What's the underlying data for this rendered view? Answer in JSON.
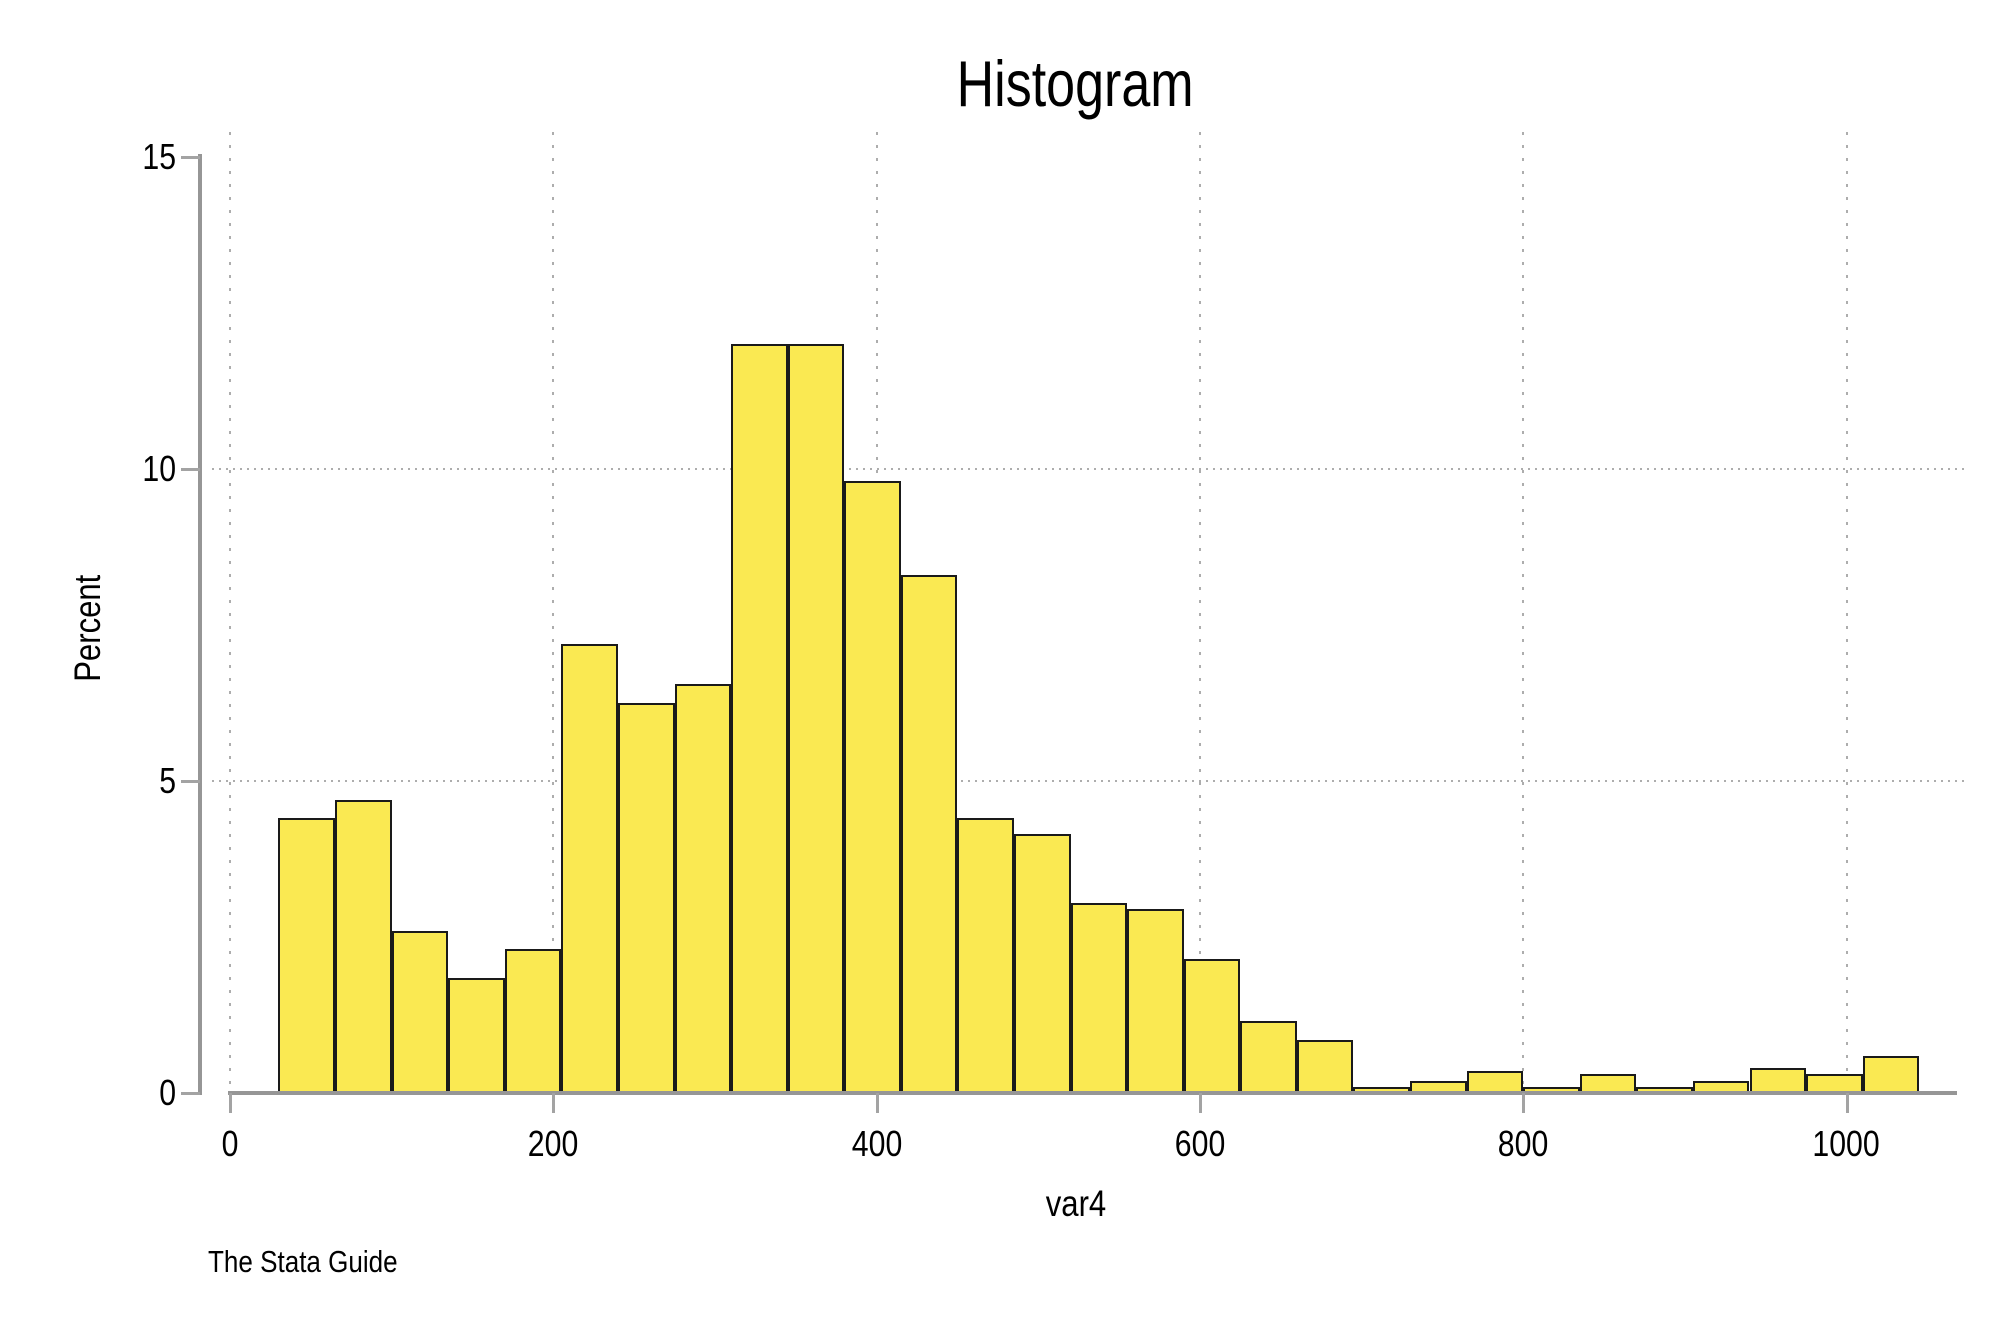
{
  "title": "Histogram",
  "caption": "The Stata Guide",
  "colors": {
    "bar_fill": "#FAE952",
    "bar_border": "#1A1A1A",
    "axis": "#969696",
    "tick": "#A3A3A3",
    "gridline": "#ADADAD",
    "text": "#000000",
    "background": "#FFFFFF"
  },
  "chart_data": {
    "type": "bar",
    "subtype": "histogram",
    "title": "Histogram",
    "xlabel": "var4",
    "ylabel": "Percent",
    "bin_start": 30,
    "bin_width": 35,
    "values": [
      4.4,
      4.7,
      2.6,
      1.85,
      2.3,
      7.2,
      6.25,
      6.55,
      12,
      12,
      9.8,
      8.3,
      4.4,
      4.15,
      3.05,
      2.95,
      2.15,
      1.15,
      0.85,
      0.1,
      0.2,
      0.35,
      0.1,
      0.3,
      0.1,
      0.2,
      0.4,
      0.3,
      0.6
    ],
    "x_ticks": [
      0,
      200,
      400,
      600,
      800,
      1000
    ],
    "x_tick_labels": [
      "0",
      "200",
      "400",
      "600",
      "800",
      "1000"
    ],
    "y_ticks": [
      0,
      5,
      10,
      15
    ],
    "y_tick_labels": [
      "0",
      "5",
      "10",
      "15"
    ],
    "xlim": [
      -11,
      1075
    ],
    "ylim": [
      0,
      15.4
    ],
    "y_gridlines": [
      5,
      10
    ],
    "x_gridlines": [
      0,
      200,
      400,
      600,
      800,
      1000
    ],
    "grid_style": "dotted",
    "legend": "none",
    "bar_unit": "percent"
  }
}
